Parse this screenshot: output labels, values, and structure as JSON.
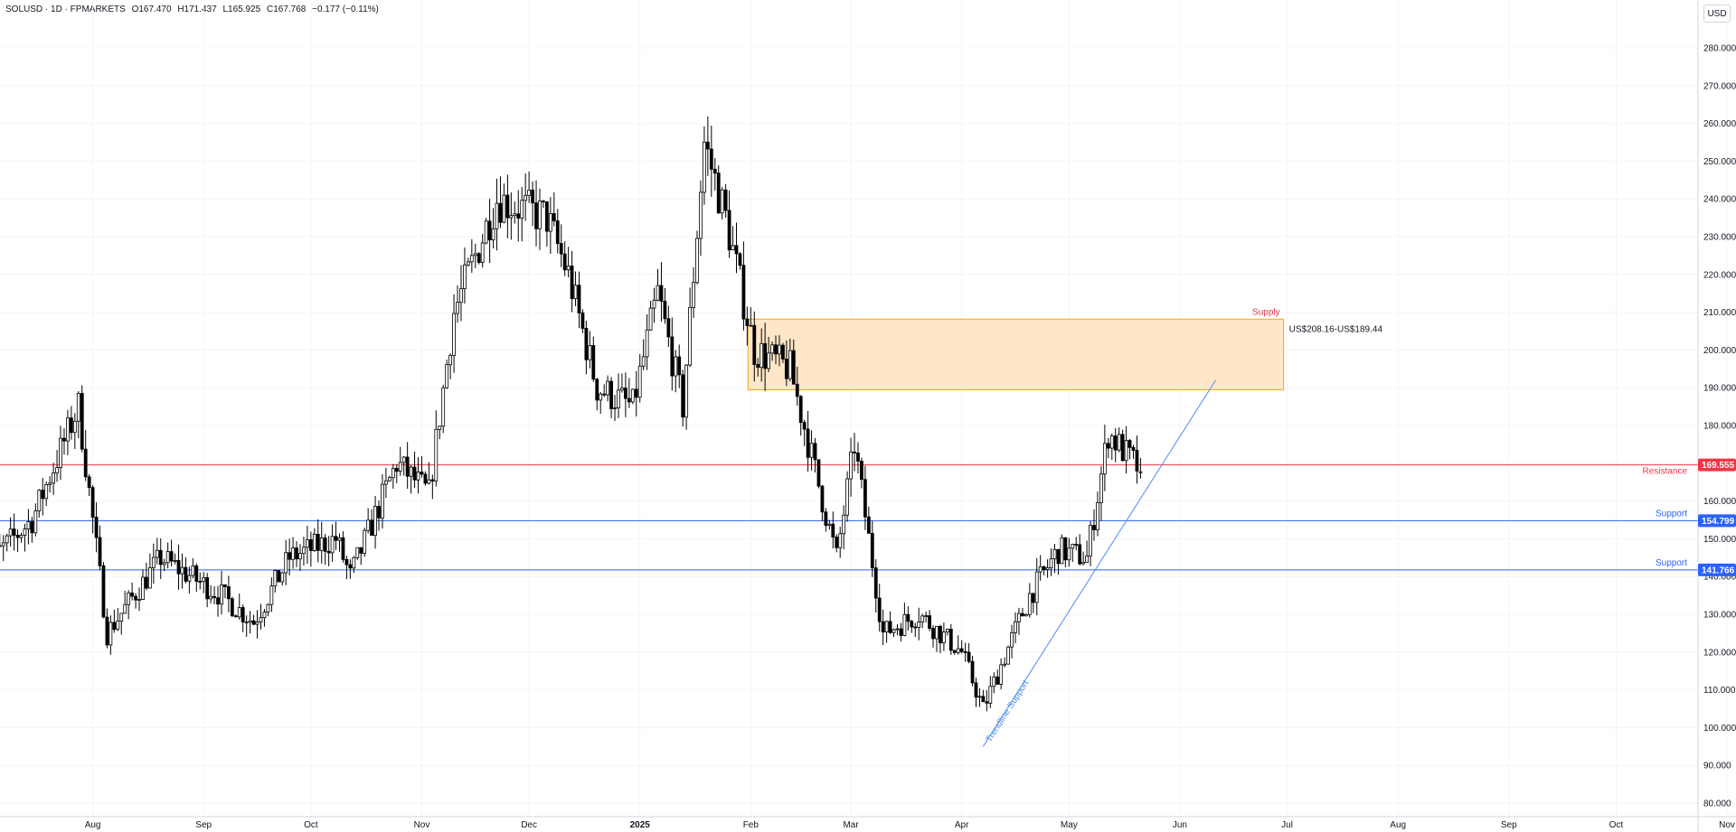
{
  "header": {
    "symbol": "SOLUSD · 1D · FPMARKETS",
    "open": "O167.470",
    "high": "H171.437",
    "low": "L165.925",
    "close": "C167.768",
    "change": "−0.177 (−0.11%)",
    "currency": "USD"
  },
  "colors": {
    "resistance": "#f23645",
    "support": "#2962ff",
    "supply_fill": "#ffe7c7",
    "supply_border": "#f5a623",
    "trendline": "#4c8cf5"
  },
  "annotations": {
    "supply_label": "Supply",
    "supply_range": "US$208.16-US$189.44",
    "resistance_label": "Resistance",
    "support_label_1": "Support",
    "support_label_2": "Support",
    "trendline_label": "Trendline Support",
    "resistance_value": "169.555",
    "support_value_1": "154.799",
    "support_value_2": "141.766"
  },
  "chart_data": {
    "type": "candlestick",
    "y_axis": {
      "range": [
        80,
        290
      ],
      "ticks": [
        80,
        90,
        100,
        110,
        120,
        130,
        140,
        150,
        160,
        170,
        180,
        190,
        200,
        210,
        220,
        230,
        240,
        250,
        260,
        270,
        280
      ],
      "tick_labels": [
        "80.000",
        "90.000",
        "100.000",
        "110.000",
        "120.000",
        "130.000",
        "140.000",
        "150.000",
        "160.000",
        "170.000",
        "180.000",
        "190.000",
        "200.000",
        "210.000",
        "220.000",
        "230.000",
        "240.000",
        "250.000",
        "260.000",
        "270.000",
        "280.000"
      ]
    },
    "x_axis": {
      "labels": [
        {
          "date": "2024-08-01",
          "text": "Aug"
        },
        {
          "date": "2024-09-01",
          "text": "Sep"
        },
        {
          "date": "2024-10-01",
          "text": "Oct"
        },
        {
          "date": "2024-11-01",
          "text": "Nov"
        },
        {
          "date": "2024-12-01",
          "text": "Dec"
        },
        {
          "date": "2025-01-01",
          "text": "2025"
        },
        {
          "date": "2025-02-01",
          "text": "Feb"
        },
        {
          "date": "2025-03-01",
          "text": "Mar"
        },
        {
          "date": "2025-04-01",
          "text": "Apr"
        },
        {
          "date": "2025-05-01",
          "text": "May"
        },
        {
          "date": "2025-06-01",
          "text": "Jun"
        },
        {
          "date": "2025-07-01",
          "text": "Jul"
        },
        {
          "date": "2025-08-01",
          "text": "Aug"
        },
        {
          "date": "2025-09-01",
          "text": "Sep"
        },
        {
          "date": "2025-10-01",
          "text": "Oct"
        },
        {
          "date": "2025-11-01",
          "text": "Nov"
        }
      ]
    },
    "horizontal_levels": [
      {
        "name": "Resistance",
        "value": 169.555
      },
      {
        "name": "Support",
        "value": 154.799
      },
      {
        "name": "Support",
        "value": 141.766
      }
    ],
    "zone": {
      "name": "Supply",
      "top": 208.16,
      "bottom": 189.44,
      "start": "2025-02-01",
      "end": "2025-06-30"
    },
    "trendline": {
      "name": "Trendline Support",
      "start": {
        "date": "2025-04-07",
        "value": 95
      },
      "end": {
        "date": "2025-06-11",
        "value": 192
      }
    },
    "anchors": [
      {
        "date": "2024-07-01",
        "value": 142
      },
      {
        "date": "2024-07-15",
        "value": 155
      },
      {
        "date": "2024-07-28",
        "value": 185
      },
      {
        "date": "2024-08-05",
        "value": 125
      },
      {
        "date": "2024-08-20",
        "value": 145
      },
      {
        "date": "2024-09-06",
        "value": 135
      },
      {
        "date": "2024-09-15",
        "value": 128
      },
      {
        "date": "2024-09-25",
        "value": 145
      },
      {
        "date": "2024-10-08",
        "value": 150
      },
      {
        "date": "2024-10-12",
        "value": 140
      },
      {
        "date": "2024-10-25",
        "value": 170
      },
      {
        "date": "2024-11-03",
        "value": 162
      },
      {
        "date": "2024-11-10",
        "value": 210
      },
      {
        "date": "2024-11-22",
        "value": 240
      },
      {
        "date": "2024-12-06",
        "value": 235
      },
      {
        "date": "2024-12-12",
        "value": 220
      },
      {
        "date": "2024-12-20",
        "value": 190
      },
      {
        "date": "2024-12-30",
        "value": 185
      },
      {
        "date": "2025-01-06",
        "value": 215
      },
      {
        "date": "2025-01-13",
        "value": 185
      },
      {
        "date": "2025-01-19",
        "value": 255
      },
      {
        "date": "2025-01-25",
        "value": 235
      },
      {
        "date": "2025-02-02",
        "value": 200
      },
      {
        "date": "2025-02-12",
        "value": 195
      },
      {
        "date": "2025-02-25",
        "value": 145
      },
      {
        "date": "2025-03-02",
        "value": 175
      },
      {
        "date": "2025-03-10",
        "value": 125
      },
      {
        "date": "2025-03-20",
        "value": 130
      },
      {
        "date": "2025-04-01",
        "value": 120
      },
      {
        "date": "2025-04-07",
        "value": 105
      },
      {
        "date": "2025-04-20",
        "value": 135
      },
      {
        "date": "2025-04-28",
        "value": 147
      },
      {
        "date": "2025-05-06",
        "value": 145
      },
      {
        "date": "2025-05-12",
        "value": 178
      },
      {
        "date": "2025-05-21",
        "value": 168
      }
    ],
    "last": {
      "open": 167.47,
      "high": 171.437,
      "low": 165.925,
      "close": 167.768
    }
  }
}
